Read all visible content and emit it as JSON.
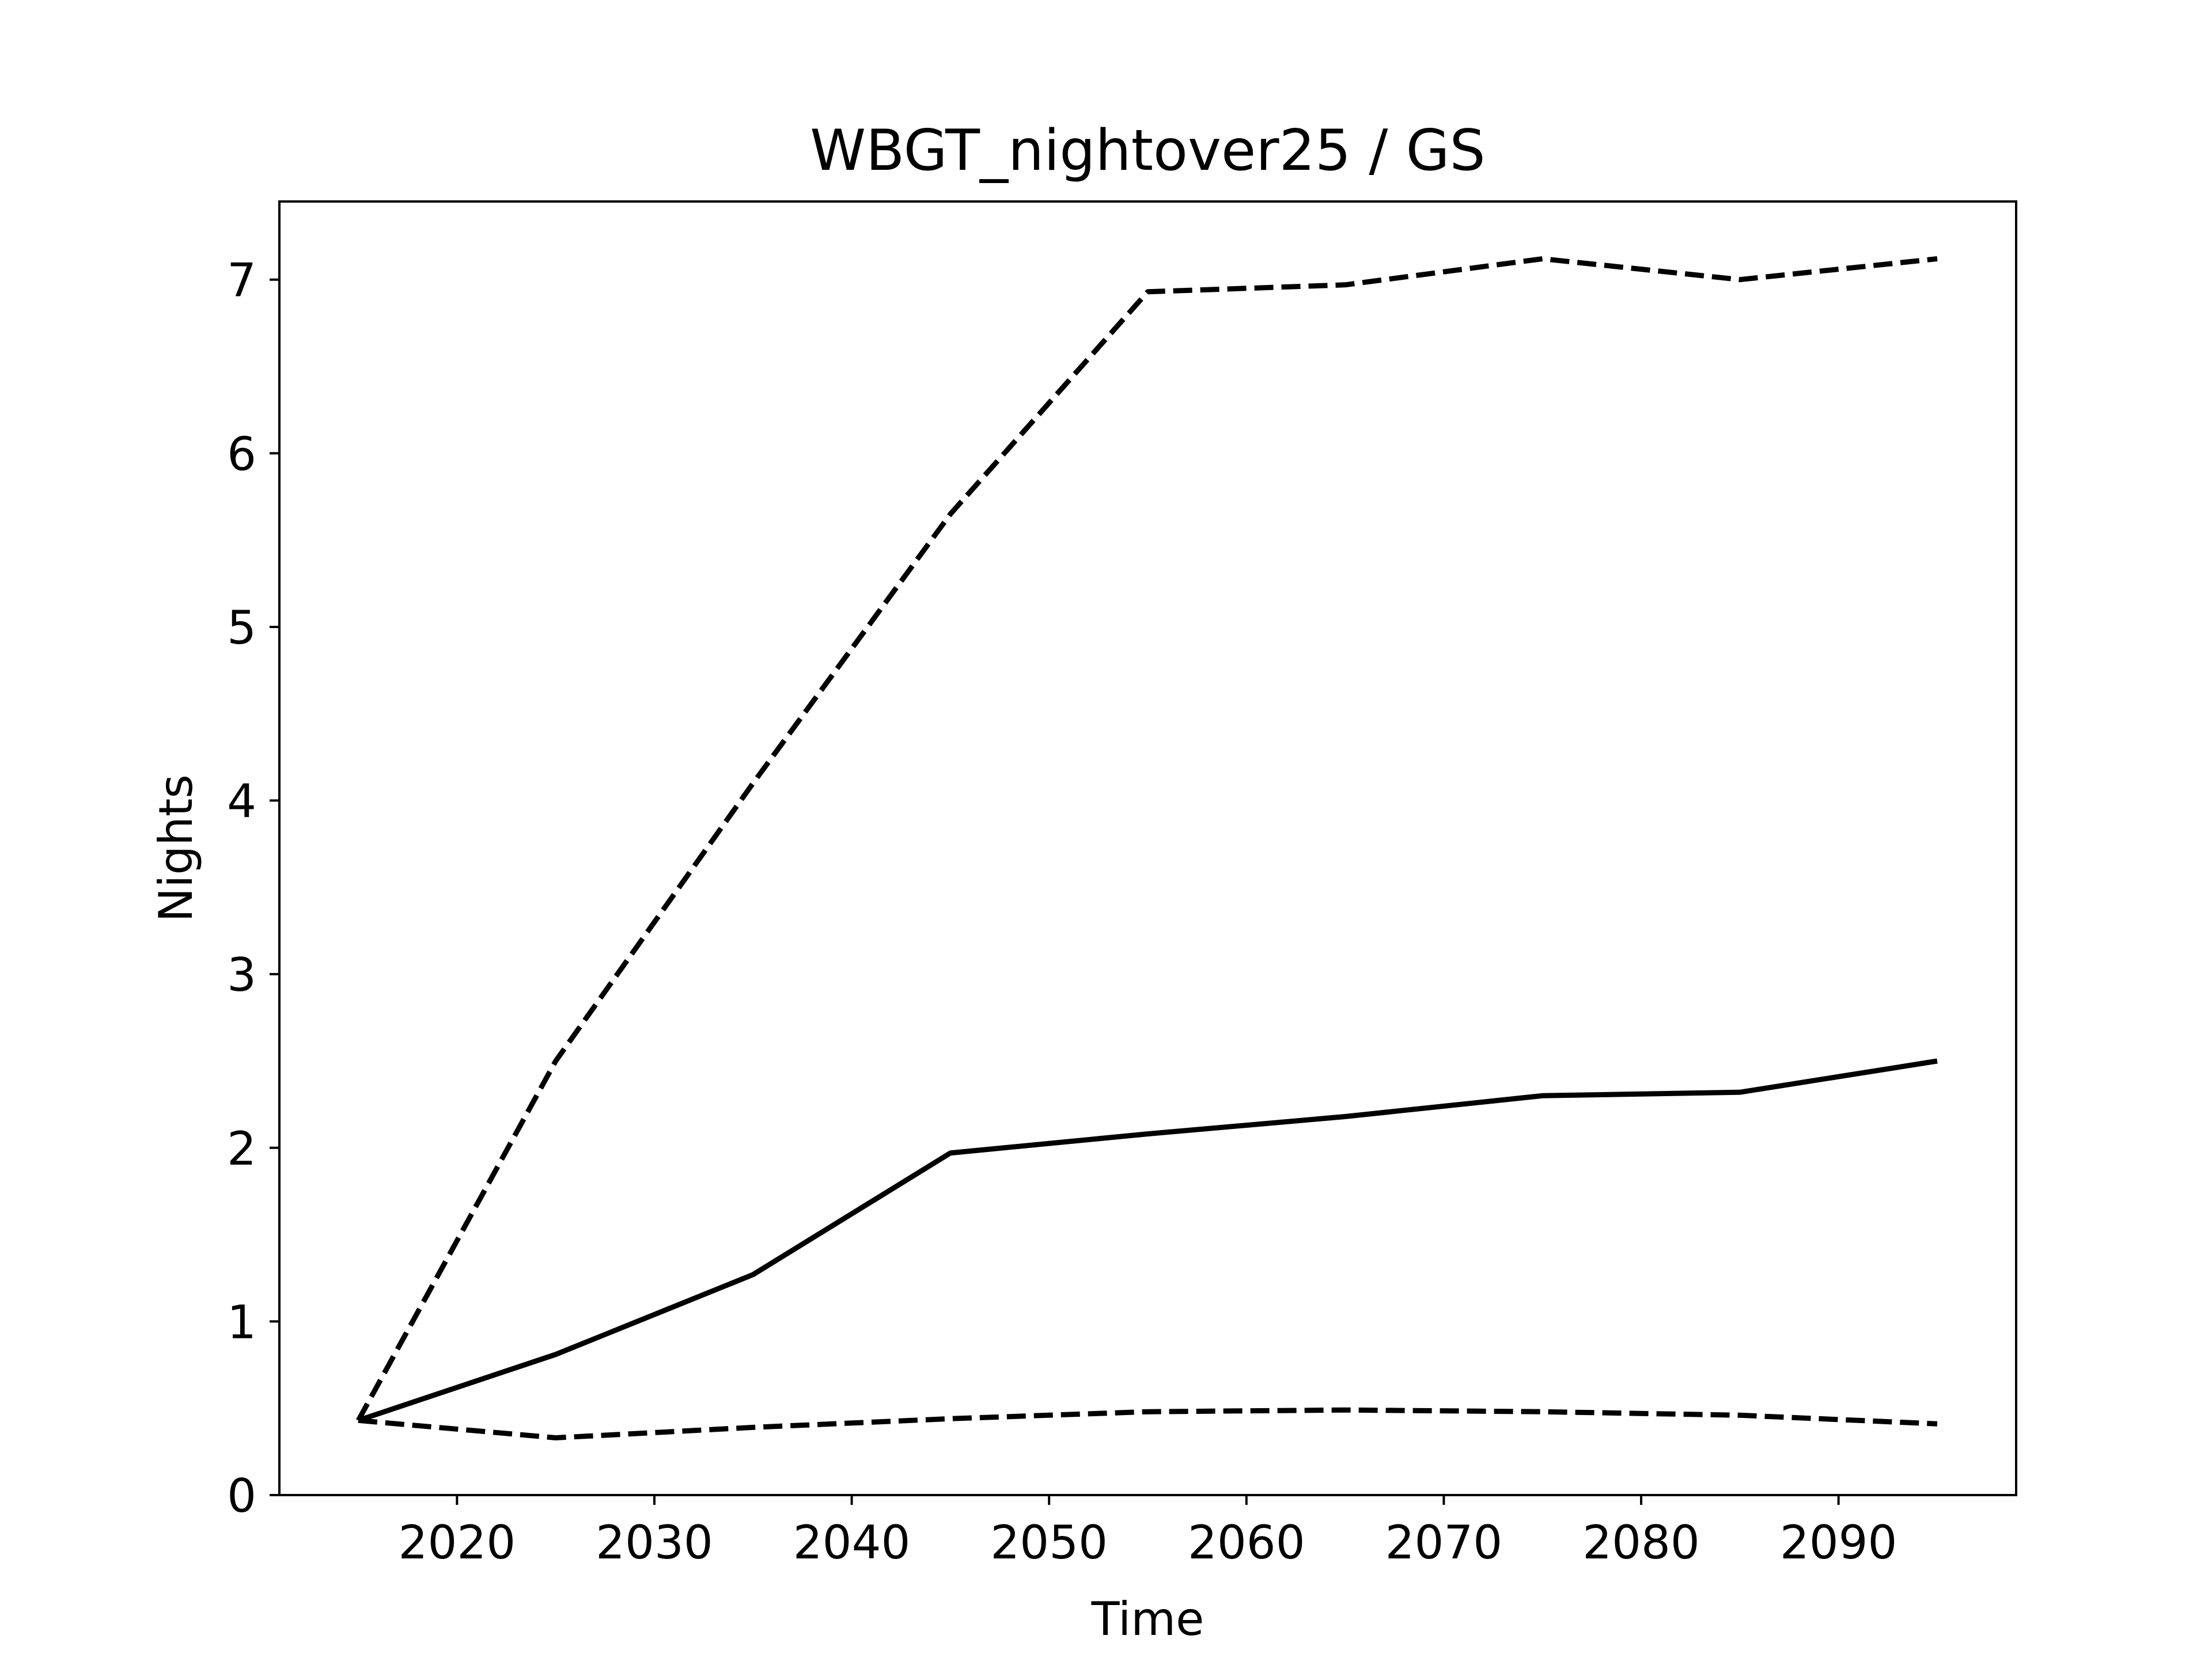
{
  "chart_data": {
    "type": "line",
    "title": "WBGT_nightover25 / GS",
    "xlabel": "Time",
    "ylabel": "Nights",
    "xlim": [
      2011,
      2099
    ],
    "ylim": [
      0,
      7.45
    ],
    "xticks": [
      2020,
      2030,
      2040,
      2050,
      2060,
      2070,
      2080,
      2090
    ],
    "yticks": [
      0,
      1,
      2,
      3,
      4,
      5,
      6,
      7
    ],
    "grid": false,
    "legend": "none",
    "series": [
      {
        "style": "solid",
        "color": "#000000",
        "x": [
          2015,
          2025,
          2035,
          2045,
          2055,
          2065,
          2075,
          2085,
          2095
        ],
        "y": [
          0.43,
          0.81,
          1.27,
          1.97,
          2.08,
          2.18,
          2.3,
          2.32,
          2.5
        ]
      },
      {
        "style": "dashed",
        "color": "#000000",
        "x": [
          2015,
          2025,
          2035,
          2045,
          2055,
          2065,
          2075,
          2085,
          2095
        ],
        "y": [
          0.43,
          2.5,
          4.1,
          5.65,
          6.93,
          6.97,
          7.12,
          7.0,
          7.12
        ]
      },
      {
        "style": "dashed",
        "color": "#000000",
        "x": [
          2015,
          2025,
          2035,
          2045,
          2055,
          2065,
          2075,
          2085,
          2095
        ],
        "y": [
          0.43,
          0.33,
          0.39,
          0.44,
          0.48,
          0.49,
          0.48,
          0.46,
          0.41
        ]
      }
    ]
  }
}
